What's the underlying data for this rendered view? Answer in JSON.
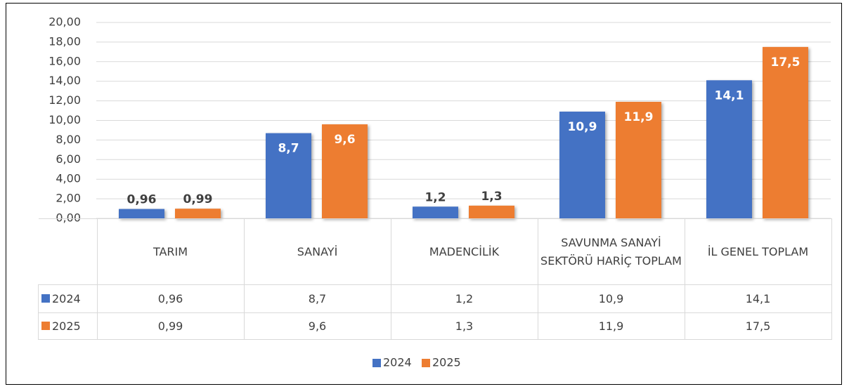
{
  "chart_data": {
    "type": "bar",
    "categories": [
      "TARIM",
      "SANAYİ",
      "MADENCİLİK",
      "SAVUNMA SANAYİ SEKTÖRÜ HARİÇ TOPLAM",
      "İL GENEL TOPLAM"
    ],
    "series": [
      {
        "name": "2024",
        "color": "#4472c4",
        "values": [
          0.96,
          8.7,
          1.2,
          10.9,
          14.1
        ],
        "value_labels": [
          "0,96",
          "8,7",
          "1,2",
          "10,9",
          "14,1"
        ]
      },
      {
        "name": "2025",
        "color": "#ed7d31",
        "values": [
          0.99,
          9.6,
          1.3,
          11.9,
          17.5
        ],
        "value_labels": [
          "0,99",
          "9,6",
          "1,3",
          "11,9",
          "17,5"
        ]
      }
    ],
    "ylim": [
      0,
      20
    ],
    "yticks": [
      {
        "value": 0,
        "label": "0,00"
      },
      {
        "value": 2,
        "label": "2,00"
      },
      {
        "value": 4,
        "label": "4,00"
      },
      {
        "value": 6,
        "label": "6,00"
      },
      {
        "value": 8,
        "label": "8,00"
      },
      {
        "value": 10,
        "label": "10,00"
      },
      {
        "value": 12,
        "label": "12,00"
      },
      {
        "value": 14,
        "label": "14,00"
      },
      {
        "value": 16,
        "label": "16,00"
      },
      {
        "value": 18,
        "label": "18,00"
      },
      {
        "value": 20,
        "label": "20,00"
      }
    ],
    "grid": true,
    "legend": "bottom"
  }
}
